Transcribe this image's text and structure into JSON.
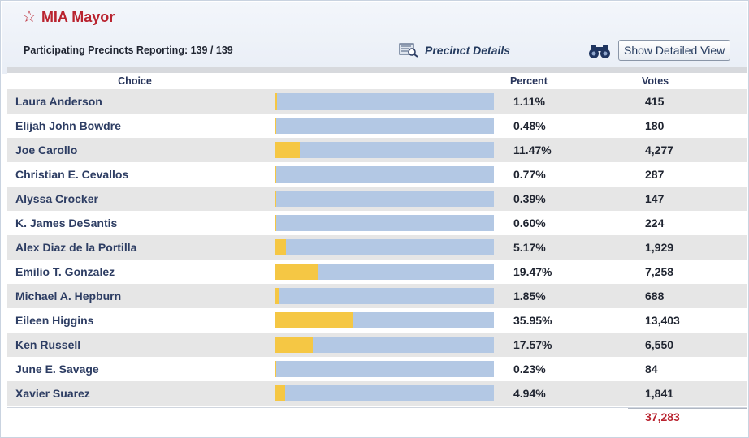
{
  "race": {
    "title": "MIA Mayor",
    "precincts_text": "Participating Precincts Reporting: 139 / 139",
    "precinct_details_label": "Precinct Details",
    "show_detailed_label": "Show Detailed View"
  },
  "colors": {
    "title": "#b9232f",
    "bar_bg": "#b3c8e4",
    "bar_fill": "#f5c744",
    "row_alt": "#e6e6e6"
  },
  "table": {
    "headers": {
      "choice": "Choice",
      "percent": "Percent",
      "votes": "Votes"
    },
    "rows": [
      {
        "name": "Laura Anderson",
        "percent": "1.11%",
        "votes": "415",
        "share": 0.0111
      },
      {
        "name": "Elijah John Bowdre",
        "percent": "0.48%",
        "votes": "180",
        "share": 0.0048
      },
      {
        "name": "Joe Carollo",
        "percent": "11.47%",
        "votes": "4,277",
        "share": 0.1147
      },
      {
        "name": "Christian E. Cevallos",
        "percent": "0.77%",
        "votes": "287",
        "share": 0.0077
      },
      {
        "name": "Alyssa Crocker",
        "percent": "0.39%",
        "votes": "147",
        "share": 0.0039
      },
      {
        "name": "K. James DeSantis",
        "percent": "0.60%",
        "votes": "224",
        "share": 0.006
      },
      {
        "name": "Alex Diaz de la Portilla",
        "percent": "5.17%",
        "votes": "1,929",
        "share": 0.0517
      },
      {
        "name": "Emilio T. Gonzalez",
        "percent": "19.47%",
        "votes": "7,258",
        "share": 0.1947
      },
      {
        "name": "Michael A. Hepburn",
        "percent": "1.85%",
        "votes": "688",
        "share": 0.0185
      },
      {
        "name": "Eileen Higgins",
        "percent": "35.95%",
        "votes": "13,403",
        "share": 0.3595
      },
      {
        "name": "Ken Russell",
        "percent": "17.57%",
        "votes": "6,550",
        "share": 0.1757
      },
      {
        "name": "June E. Savage",
        "percent": "0.23%",
        "votes": "84",
        "share": 0.0023
      },
      {
        "name": "Xavier Suarez",
        "percent": "4.94%",
        "votes": "1,841",
        "share": 0.0494
      }
    ],
    "total_votes": "37,283"
  }
}
